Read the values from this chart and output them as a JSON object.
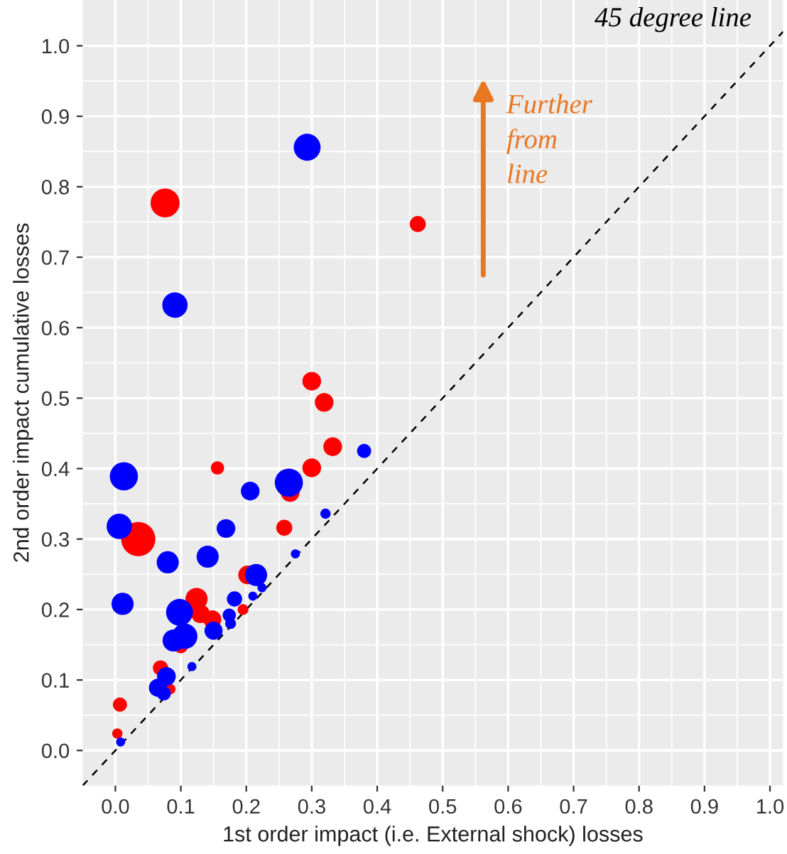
{
  "chart_data": {
    "type": "bubble",
    "xlabel": "1st order impact (i.e. External shock) losses",
    "ylabel": "2nd order impact cumulative losses",
    "annotations": [
      "Further\nfrom\nline"
    ],
    "xlim": [
      -0.05,
      1.02
    ],
    "ylim": [
      -0.05,
      1.065
    ],
    "xticks": [
      {
        "value": 0,
        "label": "0.0"
      },
      0.1,
      0.2,
      0.3,
      0.4,
      0.5,
      0.6,
      0.7,
      0.8,
      0.9,
      {
        "value": 1,
        "label": "1.0"
      }
    ],
    "yticks": [
      {
        "value": 0,
        "label": "0.0"
      },
      0.1,
      0.2,
      0.3,
      0.4,
      0.5,
      0.6,
      0.7,
      0.8,
      0.9,
      {
        "value": 1,
        "label": "1.0"
      }
    ],
    "grid": true,
    "legend": false,
    "series": [
      {
        "color": "#ff0000",
        "x": [
          0.076,
          0.462,
          0.3,
          0.319,
          0.332,
          0.156,
          0.3,
          0.267,
          0.035,
          0.258,
          0.202,
          0.195,
          0.124,
          0.13,
          0.148,
          0.1,
          0.069,
          0.084,
          0.007,
          0.003
        ],
        "values": [
          0.777,
          0.747,
          0.524,
          0.494,
          0.431,
          0.401,
          0.401,
          0.366,
          0.3,
          0.316,
          0.249,
          0.2,
          0.215,
          0.194,
          0.186,
          0.148,
          0.117,
          0.087,
          0.065,
          0.024
        ],
        "sizes": [
          0.72,
          0.22,
          0.3,
          0.3,
          0.3,
          0.15,
          0.3,
          0.3,
          1,
          0.22,
          0.3,
          0.1,
          0.42,
          0.3,
          0.28,
          0.17,
          0.2,
          0.09,
          0.17,
          0.09
        ]
      },
      {
        "color": "#0000ff",
        "x": [
          0.293,
          0.091,
          0.38,
          0.013,
          0.206,
          0.265,
          0.006,
          0.169,
          0.321,
          0.08,
          0.141,
          0.275,
          0.215,
          0.224,
          0.182,
          0.21,
          0.011,
          0.098,
          0.174,
          0.15,
          0.176,
          0.106,
          0.089,
          0.117,
          0.078,
          0.065,
          0.074,
          0.008
        ],
        "values": [
          0.856,
          0.632,
          0.425,
          0.389,
          0.368,
          0.38,
          0.318,
          0.315,
          0.336,
          0.267,
          0.275,
          0.279,
          0.249,
          0.231,
          0.215,
          0.219,
          0.208,
          0.196,
          0.192,
          0.17,
          0.18,
          0.162,
          0.156,
          0.119,
          0.105,
          0.089,
          0.081,
          0.012
        ],
        "sizes": [
          0.62,
          0.55,
          0.17,
          0.68,
          0.3,
          0.68,
          0.55,
          0.3,
          0.09,
          0.42,
          0.42,
          0.07,
          0.42,
          0.07,
          0.2,
          0.07,
          0.42,
          0.62,
          0.15,
          0.28,
          0.1,
          0.55,
          0.42,
          0.07,
          0.3,
          0.28,
          0.17,
          0.07
        ]
      },
      {
        "type": "line",
        "name": "45 degree line",
        "color": "#000000",
        "line_style": "dashed",
        "x": [
          -0.05,
          1.02
        ],
        "values": [
          -0.05,
          1.02
        ]
      }
    ]
  }
}
